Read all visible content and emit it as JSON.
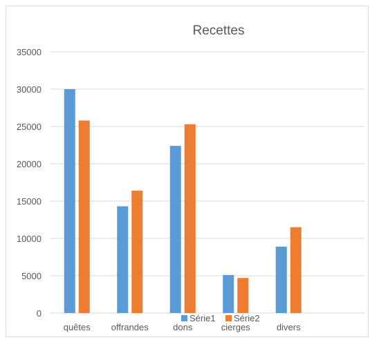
{
  "chart_data": {
    "type": "bar",
    "title": "Recettes",
    "categories": [
      "quêtes",
      "offrandes",
      "dons",
      "cierges",
      "divers"
    ],
    "series": [
      {
        "name": "Série1",
        "color": "#5b9bd5",
        "values": [
          30000,
          14300,
          22400,
          5100,
          8900
        ]
      },
      {
        "name": "Série2",
        "color": "#ed7d31",
        "values": [
          25800,
          16400,
          25300,
          4700,
          11500
        ]
      }
    ],
    "ylim": [
      0,
      35000
    ],
    "yticks": [
      0,
      5000,
      10000,
      15000,
      20000,
      25000,
      30000,
      35000
    ],
    "xlabel": "",
    "ylabel": "",
    "grid": true,
    "legend_position": "bottom"
  }
}
